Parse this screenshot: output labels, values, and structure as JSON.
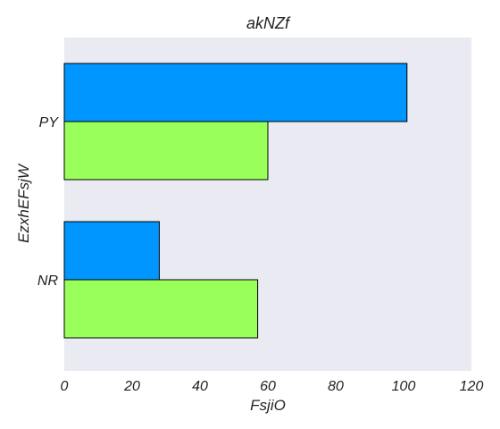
{
  "chart_data": {
    "type": "bar",
    "orientation": "horizontal",
    "title": "akNZf",
    "xlabel": "FsjiO",
    "ylabel": "EzxhEFsjW",
    "categories": [
      "PY",
      "NR"
    ],
    "series": [
      {
        "color": "#0096ff",
        "values": [
          101,
          28
        ]
      },
      {
        "color": "#99ff5a",
        "values": [
          60,
          57
        ]
      }
    ],
    "xlim": [
      0,
      120
    ],
    "xticks": [
      "0",
      "20",
      "40",
      "60",
      "80",
      "100",
      "120"
    ],
    "grid": false,
    "legend": "none",
    "background_color": "#eaeaf2",
    "bar_edge_color": "#000000"
  }
}
